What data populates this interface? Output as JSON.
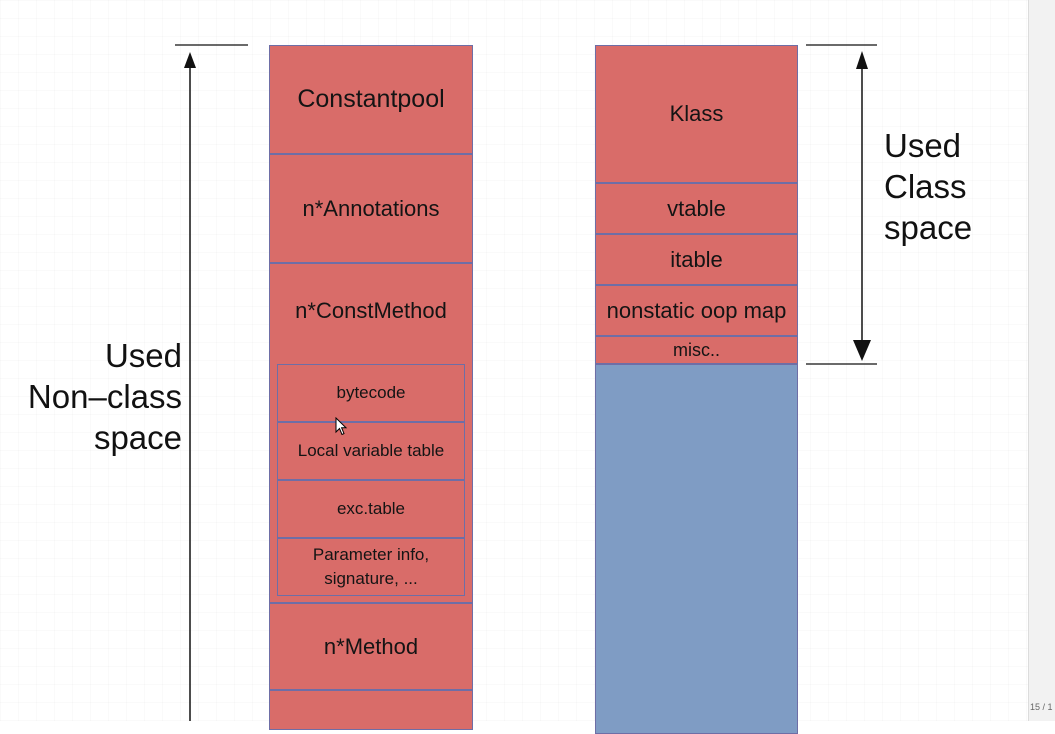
{
  "non_class_column": {
    "blocks": [
      "Constantpool",
      "n*Annotations",
      "n*ConstMethod",
      "n*Method",
      ""
    ],
    "const_method_parts": [
      "bytecode",
      "Local variable table",
      "exc.table",
      "Parameter info,\nsignature, ..."
    ]
  },
  "class_column": {
    "blocks": [
      "Klass",
      "vtable",
      "itable",
      "nonstatic oop map",
      "misc.."
    ]
  },
  "labels": {
    "non_class_space": "Used\nNon–class\nspace",
    "class_space": "Used\nClass\nspace"
  },
  "viewer": {
    "page_indicator": "15 / 1"
  },
  "colors": {
    "block_fill": "#d96c69",
    "block_border": "#6e6ea6",
    "free_space_fill": "#7f9cc4"
  }
}
